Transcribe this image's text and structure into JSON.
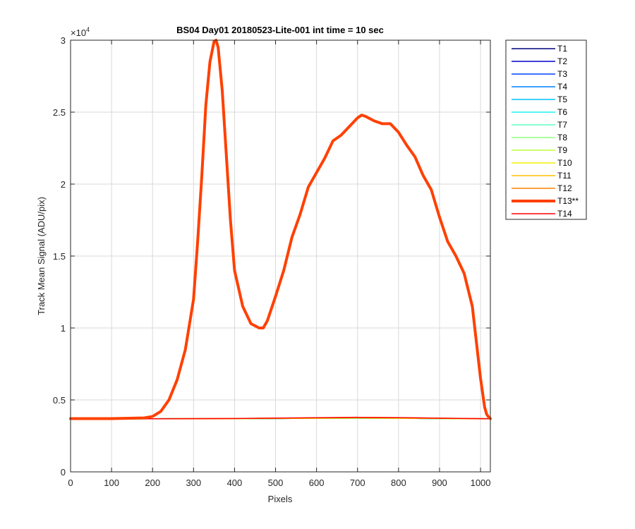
{
  "chart_data": {
    "type": "line",
    "title": "BS04 Day01 20180523-Lite-001 int time = 10 sec",
    "xlabel": "Pixels",
    "ylabel": "Track Mean Signal (ADU/pix)",
    "xlim": [
      0,
      1024
    ],
    "ylim": [
      0,
      30000
    ],
    "xticks": [
      0,
      100,
      200,
      300,
      400,
      500,
      600,
      700,
      800,
      900,
      1000
    ],
    "xtick_labels": [
      "0",
      "100",
      "200",
      "300",
      "400",
      "500",
      "600",
      "700",
      "800",
      "900",
      "1000"
    ],
    "yticks": [
      0,
      5000,
      10000,
      15000,
      20000,
      25000,
      30000
    ],
    "ytick_labels": [
      "0",
      "0.5",
      "1",
      "1.5",
      "2",
      "2.5",
      "3"
    ],
    "y_exponent_label": "×10",
    "y_exponent_power": "4",
    "grid": true,
    "legend_position": "outside-top-right",
    "series": [
      {
        "name": "T1",
        "color": "#00007f",
        "width": 1.5,
        "x": [
          0,
          200,
          400,
          600,
          700,
          800,
          1024
        ],
        "y": [
          3680,
          3690,
          3700,
          3720,
          3730,
          3720,
          3690
        ]
      },
      {
        "name": "T2",
        "color": "#0000d0",
        "width": 1.5,
        "x": [
          0,
          200,
          400,
          600,
          700,
          800,
          1024
        ],
        "y": [
          3680,
          3690,
          3700,
          3720,
          3730,
          3720,
          3690
        ]
      },
      {
        "name": "T3",
        "color": "#0040ff",
        "width": 1.5,
        "x": [
          0,
          200,
          400,
          600,
          700,
          800,
          1024
        ],
        "y": [
          3680,
          3690,
          3700,
          3720,
          3730,
          3720,
          3690
        ]
      },
      {
        "name": "T4",
        "color": "#0080ff",
        "width": 1.5,
        "x": [
          0,
          200,
          400,
          600,
          700,
          800,
          1024
        ],
        "y": [
          3680,
          3690,
          3700,
          3720,
          3730,
          3720,
          3690
        ]
      },
      {
        "name": "T5",
        "color": "#00c0ff",
        "width": 1.5,
        "x": [
          0,
          200,
          400,
          600,
          700,
          800,
          1024
        ],
        "y": [
          3680,
          3690,
          3700,
          3720,
          3730,
          3720,
          3690
        ]
      },
      {
        "name": "T6",
        "color": "#20f0f0",
        "width": 1.5,
        "x": [
          0,
          200,
          400,
          600,
          700,
          800,
          1024
        ],
        "y": [
          3680,
          3690,
          3700,
          3720,
          3730,
          3720,
          3690
        ]
      },
      {
        "name": "T7",
        "color": "#60ffc0",
        "width": 1.5,
        "x": [
          0,
          200,
          400,
          600,
          700,
          800,
          1024
        ],
        "y": [
          3680,
          3690,
          3700,
          3720,
          3730,
          3720,
          3690
        ]
      },
      {
        "name": "T8",
        "color": "#90ff80",
        "width": 1.5,
        "x": [
          0,
          200,
          400,
          600,
          700,
          800,
          1024
        ],
        "y": [
          3680,
          3690,
          3700,
          3720,
          3730,
          3720,
          3690
        ]
      },
      {
        "name": "T9",
        "color": "#c0ff40",
        "width": 1.5,
        "x": [
          0,
          200,
          400,
          600,
          700,
          800,
          1024
        ],
        "y": [
          3680,
          3690,
          3700,
          3720,
          3740,
          3720,
          3690
        ]
      },
      {
        "name": "T10",
        "color": "#f0f000",
        "width": 1.5,
        "x": [
          0,
          200,
          400,
          600,
          700,
          800,
          1024
        ],
        "y": [
          3680,
          3690,
          3700,
          3730,
          3750,
          3730,
          3690
        ]
      },
      {
        "name": "T11",
        "color": "#ffc000",
        "width": 1.5,
        "x": [
          0,
          200,
          400,
          600,
          700,
          800,
          1024
        ],
        "y": [
          3680,
          3690,
          3710,
          3740,
          3760,
          3740,
          3690
        ]
      },
      {
        "name": "T12",
        "color": "#ff8000",
        "width": 1.5,
        "x": [
          0,
          200,
          400,
          600,
          700,
          800,
          1024
        ],
        "y": [
          3680,
          3690,
          3710,
          3750,
          3780,
          3760,
          3690
        ]
      },
      {
        "name": "T13**",
        "color": "#ff4000",
        "width": 4,
        "x": [
          0,
          100,
          180,
          200,
          220,
          240,
          260,
          280,
          300,
          310,
          320,
          330,
          340,
          350,
          355,
          360,
          370,
          380,
          390,
          400,
          420,
          440,
          460,
          470,
          480,
          500,
          520,
          540,
          560,
          580,
          600,
          620,
          640,
          660,
          680,
          700,
          710,
          720,
          740,
          760,
          780,
          800,
          820,
          840,
          860,
          880,
          900,
          920,
          940,
          960,
          980,
          1000,
          1010,
          1015,
          1020,
          1024
        ],
        "y": [
          3700,
          3700,
          3750,
          3850,
          4200,
          5000,
          6400,
          8500,
          12000,
          16000,
          20500,
          25500,
          28500,
          29900,
          30000,
          29500,
          26500,
          22000,
          17500,
          14000,
          11500,
          10300,
          10000,
          10000,
          10500,
          12200,
          14000,
          16300,
          17900,
          19800,
          20800,
          21800,
          23000,
          23400,
          24000,
          24600,
          24800,
          24700,
          24400,
          24200,
          24200,
          23600,
          22700,
          21900,
          20600,
          19600,
          17700,
          16000,
          15000,
          13800,
          11500,
          6500,
          4500,
          4000,
          3800,
          3700
        ]
      },
      {
        "name": "T14",
        "color": "#ff0000",
        "width": 1.5,
        "x": [
          0,
          200,
          400,
          600,
          700,
          800,
          1024
        ],
        "y": [
          3680,
          3690,
          3710,
          3760,
          3790,
          3770,
          3690
        ]
      }
    ]
  }
}
